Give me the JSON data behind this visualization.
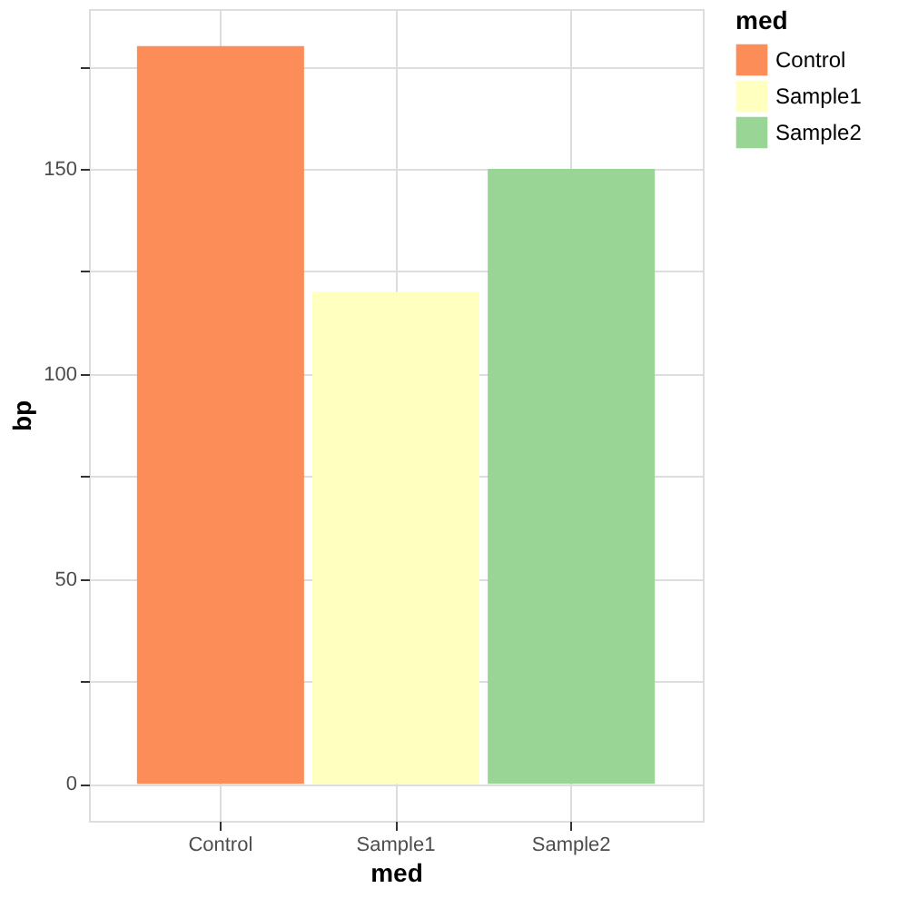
{
  "chart_data": {
    "type": "bar",
    "categories": [
      "Control",
      "Sample1",
      "Sample2"
    ],
    "series": [
      {
        "name": "Control",
        "color": "#fc8d59",
        "values": [
          180,
          null,
          null
        ]
      },
      {
        "name": "Sample1",
        "color": "#ffffbf",
        "values": [
          null,
          120,
          null
        ]
      },
      {
        "name": "Sample2",
        "color": "#99d594",
        "values": [
          null,
          null,
          150
        ]
      }
    ],
    "xlabel": "med",
    "ylabel": "bp",
    "legend_title": "med",
    "legend": "right",
    "ylim": [
      -9,
      189
    ],
    "yticks": [
      0,
      {
        "value": 25,
        "label": null
      },
      50,
      {
        "value": 75,
        "label": null
      },
      100,
      {
        "value": 125,
        "label": null
      },
      150,
      {
        "value": 175,
        "label": null
      }
    ],
    "grid": true
  }
}
